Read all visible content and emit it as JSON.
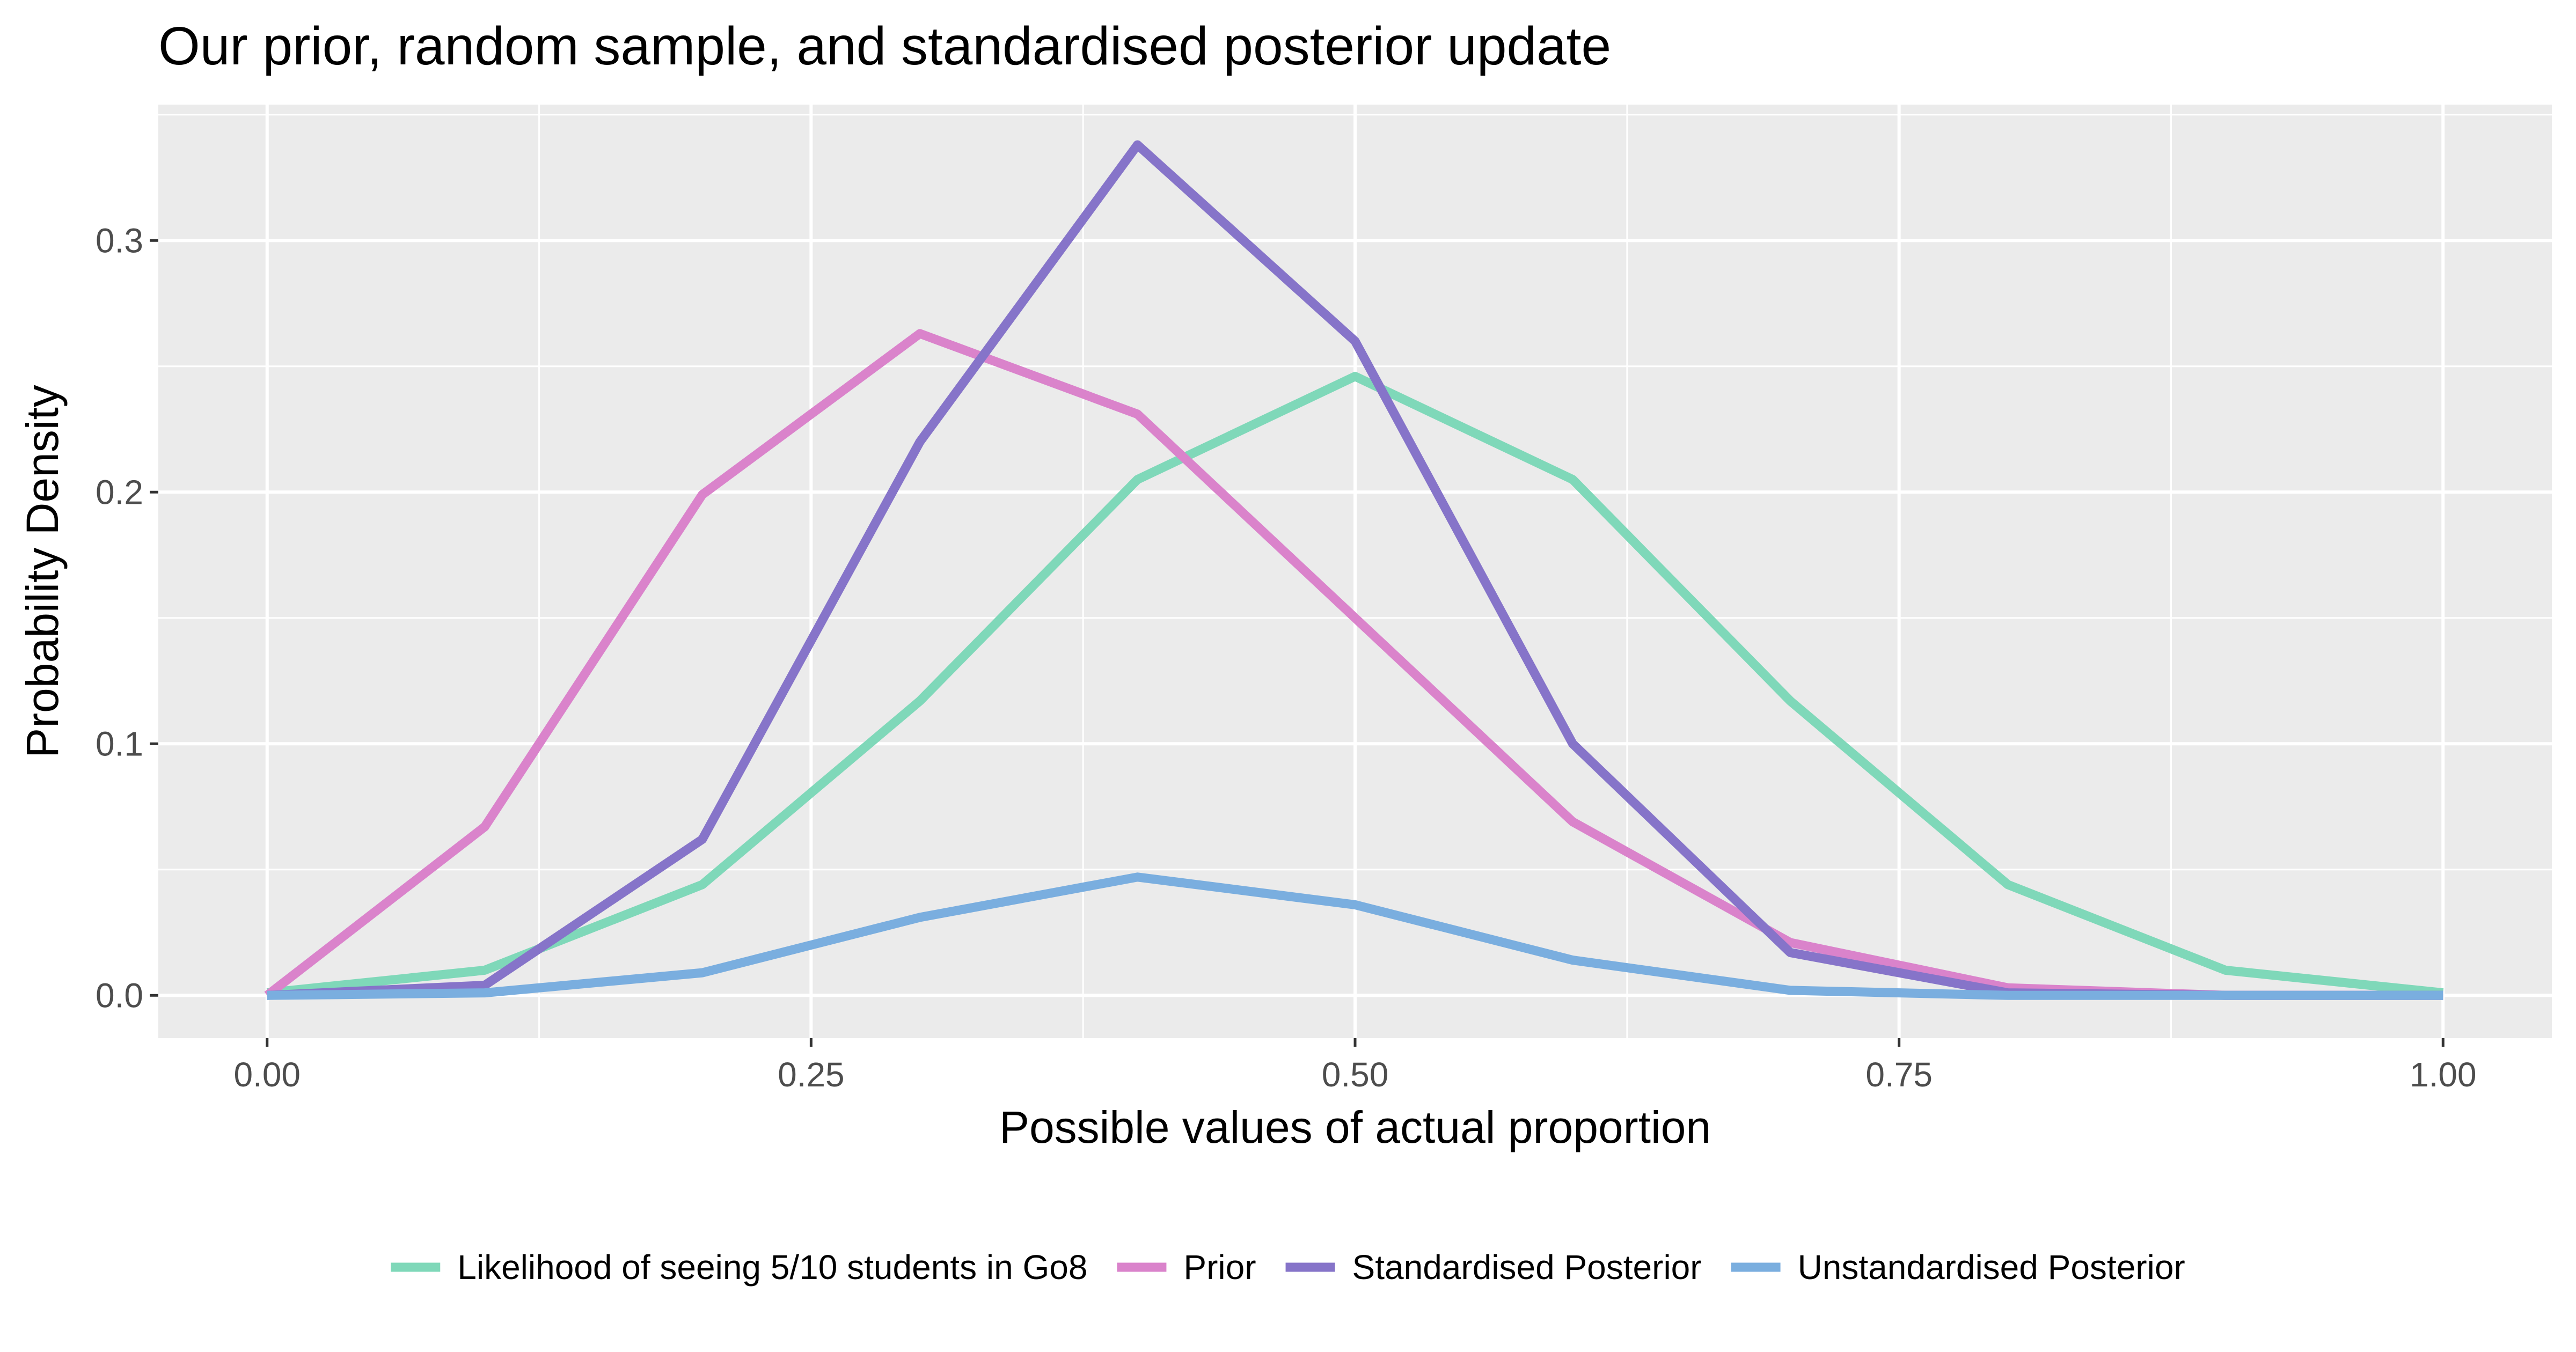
{
  "chart_data": {
    "type": "line",
    "title": "Our prior, random sample, and standardised posterior update",
    "xlabel": "Possible values of actual proportion",
    "ylabel": "Probability Density",
    "xlim": [
      -0.05,
      1.05
    ],
    "ylim": [
      -0.017,
      0.354
    ],
    "xticks": [
      0,
      0.25,
      0.5,
      0.75,
      1
    ],
    "xtick_labels": [
      "0.00",
      "0.25",
      "0.50",
      "0.75",
      "1.00"
    ],
    "yticks": [
      0,
      0.1,
      0.2,
      0.3
    ],
    "ytick_labels": [
      "0.0",
      "0.1",
      "0.2",
      "0.3"
    ],
    "grid": true,
    "legend_position": "bottom",
    "x": [
      0,
      0.1,
      0.2,
      0.3,
      0.4,
      0.5,
      0.6,
      0.7,
      0.8,
      0.9,
      1.0
    ],
    "series": [
      {
        "name": "Likelihood of seeing 5/10 students in Go8",
        "color": "#7fd8b9",
        "values": [
          0.001,
          0.01,
          0.044,
          0.117,
          0.205,
          0.246,
          0.205,
          0.117,
          0.044,
          0.01,
          0.001
        ]
      },
      {
        "name": "Prior",
        "color": "#da83cb",
        "values": [
          0.0,
          0.067,
          0.199,
          0.263,
          0.231,
          0.15,
          0.069,
          0.021,
          0.003,
          0.0,
          0.0
        ]
      },
      {
        "name": "Standardised Posterior",
        "color": "#8674c9",
        "values": [
          0.0,
          0.004,
          0.062,
          0.22,
          0.338,
          0.26,
          0.1,
          0.017,
          0.001,
          0.0,
          0.0
        ]
      },
      {
        "name": "Unstandardised Posterior",
        "color": "#7aaedf",
        "values": [
          0.0,
          0.001,
          0.009,
          0.031,
          0.047,
          0.036,
          0.014,
          0.002,
          0.0,
          0.0,
          0.0
        ]
      }
    ]
  }
}
